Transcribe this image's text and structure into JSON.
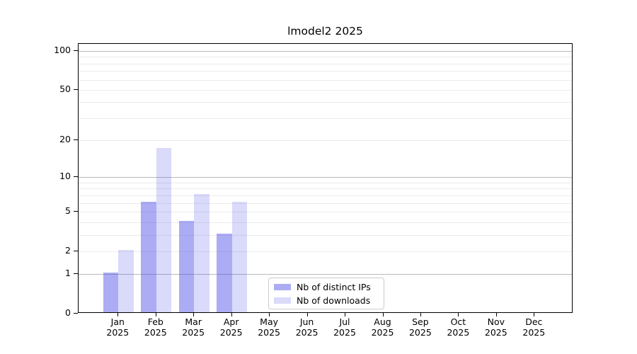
{
  "chart_data": {
    "type": "bar",
    "title": "lmodel2 2025",
    "xlabel": "",
    "ylabel": "",
    "x_tick_year": "2025",
    "categories": [
      "Jan",
      "Feb",
      "Mar",
      "Apr",
      "May",
      "Jun",
      "Jul",
      "Aug",
      "Sep",
      "Oct",
      "Nov",
      "Dec"
    ],
    "series": [
      {
        "name": "Nb of distinct IPs",
        "color": "#4646e6",
        "alpha": 0.45,
        "values": [
          1,
          6,
          4,
          3,
          0,
          0,
          0,
          0,
          0,
          0,
          0,
          0
        ]
      },
      {
        "name": "Nb of downloads",
        "color": "#4646e6",
        "alpha": 0.2,
        "values": [
          2,
          17,
          7,
          6,
          0,
          0,
          0,
          0,
          0,
          0,
          0,
          0
        ]
      }
    ],
    "yscale": "log1p",
    "ylim": [
      0,
      114
    ],
    "y_ticks": [
      100,
      50,
      20,
      10,
      5,
      2,
      1,
      0
    ],
    "y_major_gridlines": [
      1,
      10,
      100
    ],
    "y_minor_gridlines": [
      2,
      3,
      4,
      5,
      6,
      7,
      8,
      9,
      20,
      30,
      40,
      50,
      60,
      70,
      80,
      90
    ],
    "grid": true,
    "legend_position": "lower-center"
  },
  "colors": {
    "major_grid": "#b9b9b9",
    "minor_grid": "#ebebeb",
    "spine": "#000000",
    "legend_border": "#cccccc",
    "background": "#ffffff"
  }
}
